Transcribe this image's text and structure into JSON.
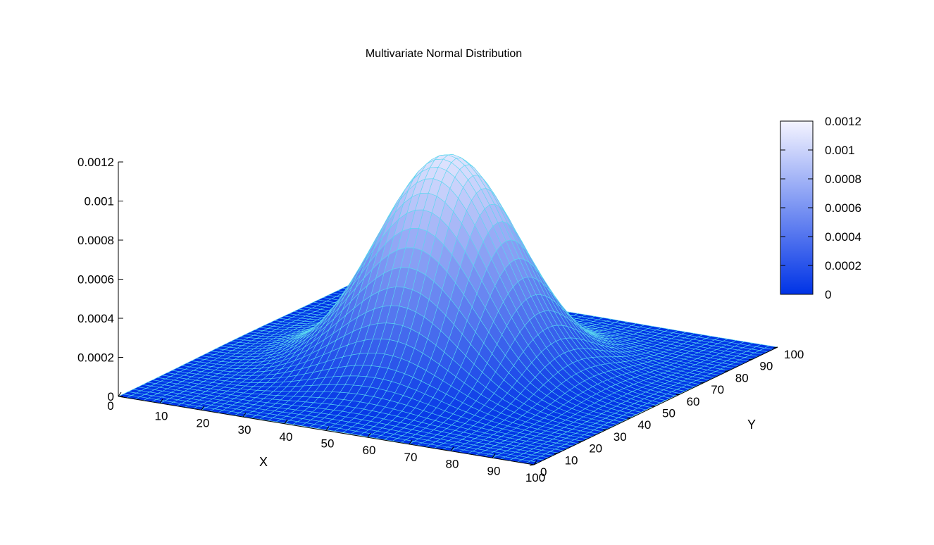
{
  "chart_data": {
    "type": "surface",
    "title": "Multivariate Normal Distribution",
    "xlabel": "X",
    "ylabel": "Y",
    "xlim": [
      0,
      100
    ],
    "ylim": [
      0,
      100
    ],
    "zlim": [
      0,
      0.0012
    ],
    "x_ticks": [
      "0",
      "10",
      "20",
      "30",
      "40",
      "50",
      "60",
      "70",
      "80",
      "90",
      "100"
    ],
    "y_ticks": [
      "0",
      "10",
      "20",
      "30",
      "40",
      "50",
      "60",
      "70",
      "80",
      "90",
      "100"
    ],
    "z_ticks": [
      "0",
      "0.0002",
      "0.0004",
      "0.0006",
      "0.0008",
      "0.001",
      "0.0012"
    ],
    "colorbar_ticks": [
      "0",
      "0.0002",
      "0.0004",
      "0.0006",
      "0.0008",
      "0.001",
      "0.0012"
    ],
    "colorbar_range": [
      0,
      0.0012
    ],
    "distribution": {
      "mean_x": 50,
      "mean_y": 50,
      "sd_x": 15,
      "sd_y": 15,
      "peak": 0.00111
    },
    "grid_step": 2,
    "colors": {
      "low": "#0033e6",
      "high": "#f4f4ff",
      "mesh": "#5ad7f0"
    }
  }
}
